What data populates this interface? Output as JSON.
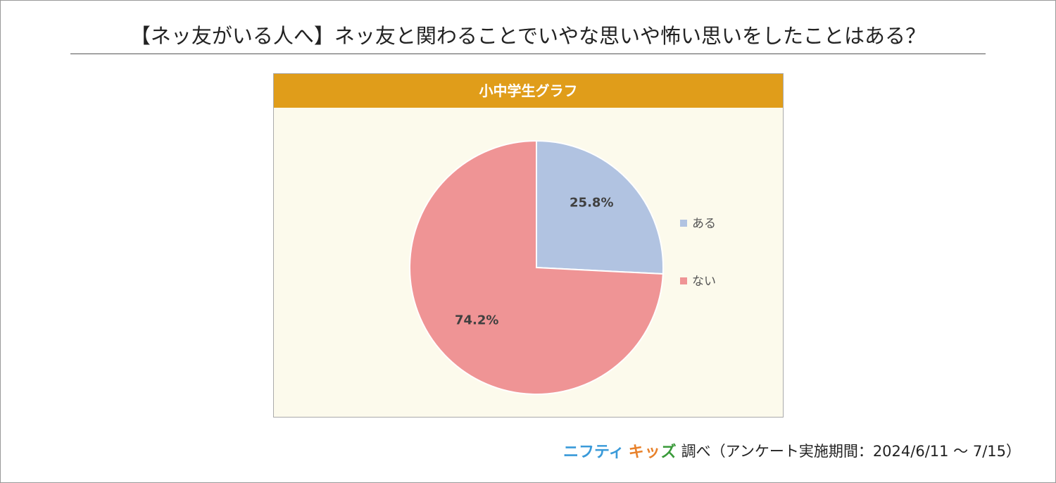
{
  "title": "【ネッ友がいる人へ】ネッ友と関わることでいやな思いや怖い思いをしたことはある？",
  "chart_data": {
    "type": "pie",
    "title": "小中学生グラフ",
    "categories": [
      "ある",
      "ない"
    ],
    "values": [
      25.8,
      74.2
    ],
    "labels": [
      "25.8%",
      "74.2%"
    ],
    "colors": [
      "#b1c3e1",
      "#ef9495"
    ],
    "legend": "right"
  },
  "footer": {
    "brand_1": "ニフティ",
    "brand_2a": "キッ",
    "brand_2b": "ズ",
    "source": "調べ（アンケート実施期間：2024/6/11 ～ 7/15）"
  }
}
